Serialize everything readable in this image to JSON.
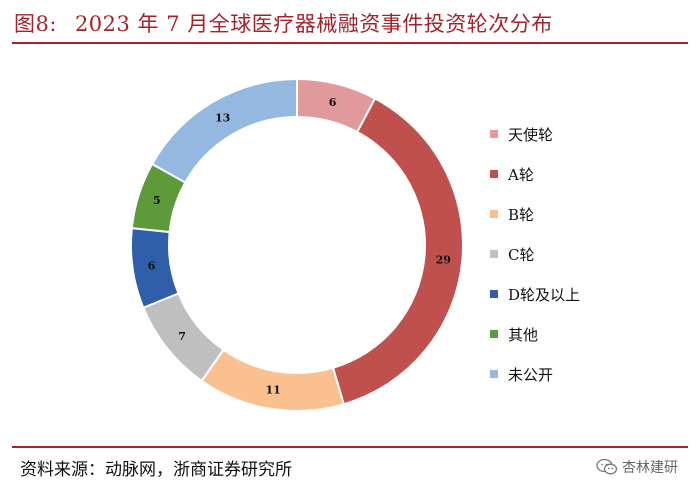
{
  "header": {
    "figure_label": "图8:",
    "title": "2023 年 7 月全球医疗器械融资事件投资轮次分布"
  },
  "footer": {
    "source": "资料来源：动脉网，浙商证券研究所",
    "watermark_text": "杏林建研",
    "watermark_icon": "wechat-icon"
  },
  "chart_data": {
    "type": "pie",
    "variant": "donut",
    "title": "2023 年 7 月全球医疗器械融资事件投资轮次分布",
    "categories": [
      "天使轮",
      "A轮",
      "B轮",
      "C轮",
      "D轮及以上",
      "其他",
      "未公开"
    ],
    "values": [
      6,
      29,
      11,
      7,
      6,
      5,
      13
    ],
    "colors": [
      "#E19A9B",
      "#C0504D",
      "#FAC090",
      "#BFBFBF",
      "#2E5FA8",
      "#5C9A3A",
      "#95B8E0"
    ],
    "legend_position": "right",
    "start_angle_deg": 0,
    "direction": "clockwise"
  }
}
